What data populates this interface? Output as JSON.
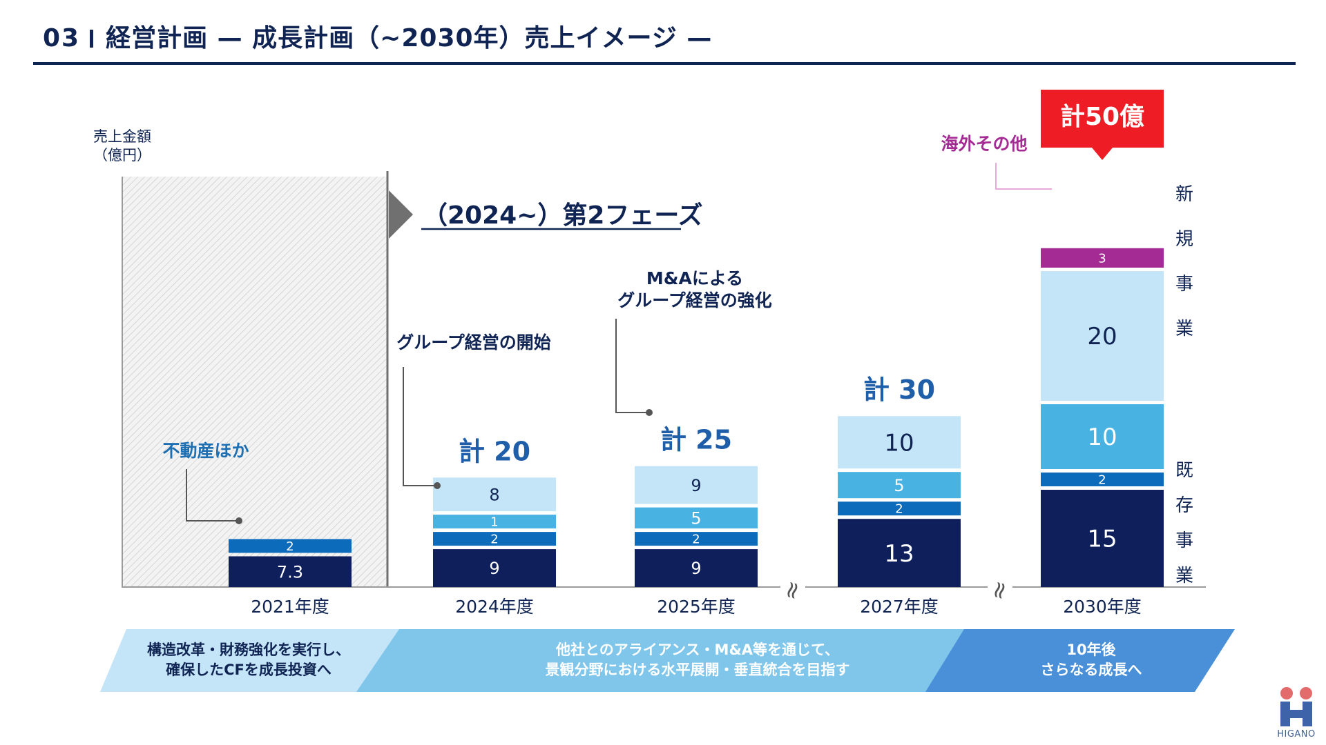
{
  "header": {
    "number": "03",
    "title": "経営計画 — 成長計画（~2030年）売上イメージ —"
  },
  "chart_data": {
    "type": "bar",
    "stacked": true,
    "ylabel_line1": "売上金額",
    "ylabel_line2": "（億円）",
    "categories": [
      "2021年度",
      "2024年度",
      "2025年度",
      "2027年度",
      "2030年度"
    ],
    "series": [
      {
        "color": "#0e1f5b",
        "text_color": "#ffffff",
        "values": [
          7.3,
          9,
          9,
          13,
          15
        ]
      },
      {
        "color": "#0c6bbb",
        "text_color": "#ffffff",
        "values": [
          2,
          2,
          2,
          2,
          2
        ]
      },
      {
        "color": "#48b2e2",
        "text_color": "#ffffff",
        "values": [
          null,
          1,
          5,
          5,
          10
        ]
      },
      {
        "color": "#c4e4f7",
        "text_color": "#0f2453",
        "values": [
          null,
          8,
          9,
          10,
          20
        ]
      },
      {
        "color": "#a42b93",
        "text_color": "#ffffff",
        "values": [
          null,
          null,
          null,
          null,
          3
        ]
      }
    ],
    "labels": [
      [
        "7.3",
        "9",
        "9",
        "13",
        "15"
      ],
      [
        "2",
        "2",
        "2",
        "2",
        "2"
      ],
      [
        "",
        "1",
        "5",
        "5",
        "10"
      ],
      [
        "",
        "8",
        "9",
        "10",
        "20"
      ],
      [
        "",
        "",
        "",
        "",
        "3"
      ]
    ],
    "totals": [
      "",
      "計 20",
      "計 25",
      "計 30",
      ""
    ],
    "highlight_total": "計50億",
    "highlight_color": "#ee1c24",
    "phase_label": "（2024~）第2フェーズ",
    "annotations": {
      "real_estate": "不動産ほか",
      "group_start": "グループ経営の開始",
      "ma_line1": "M&Aによる",
      "ma_line2": "グループ経営の強化",
      "overseas": "海外その他"
    },
    "side_labels": {
      "new_business": [
        "新",
        "規",
        "事",
        "業"
      ],
      "existing_business": [
        "既",
        "存",
        "事",
        "業"
      ]
    },
    "axis_break_symbol": "≈"
  },
  "banner": {
    "segment1_line1": "構造改革・財務強化を実行し、",
    "segment1_line2": "確保したCFを成長投資へ",
    "segment2_line1": "他社とのアライアンス・M&A等を通じて、",
    "segment2_line2": "景観分野における水平展開・垂直統合を目指す",
    "segment3_line1": "10年後",
    "segment3_line2": "さらなる成長へ",
    "colors": [
      "#c4e4f7",
      "#7fc6ea",
      "#4a90d9"
    ]
  },
  "logo": {
    "text": "HIGANO",
    "colors": [
      "#e46b6b",
      "#3f63a8"
    ]
  }
}
